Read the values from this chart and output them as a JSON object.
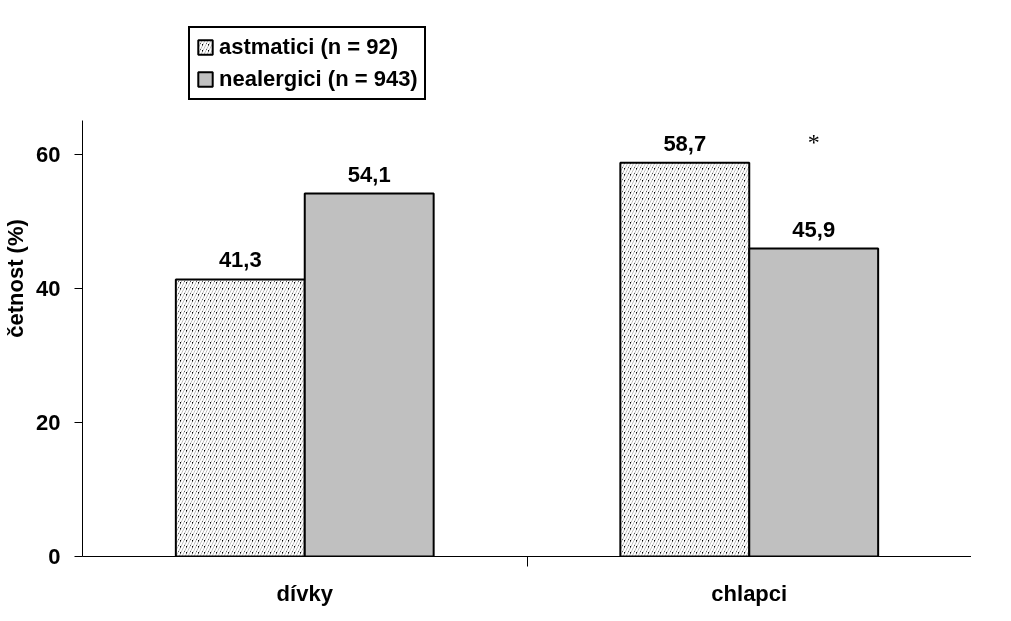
{
  "chart_data": {
    "type": "bar",
    "categories": [
      "dívky",
      "chlapci"
    ],
    "ylabel": "četnost (%)",
    "ylim": [
      0,
      65
    ],
    "yticks": [
      0,
      20,
      40,
      60
    ],
    "grid": false,
    "legend": "top",
    "series": [
      {
        "name": "astmatici (n = 92)",
        "color": "#000000",
        "values": [
          41.3,
          58.7
        ],
        "value_labels": [
          "41,3",
          "58,7"
        ]
      },
      {
        "name": "nealergici (n = 943)",
        "color": "#c0c0c0",
        "values": [
          54.1,
          45.9
        ],
        "value_labels": [
          "54,1",
          "45,9"
        ]
      }
    ],
    "annotations": [
      "*"
    ]
  }
}
